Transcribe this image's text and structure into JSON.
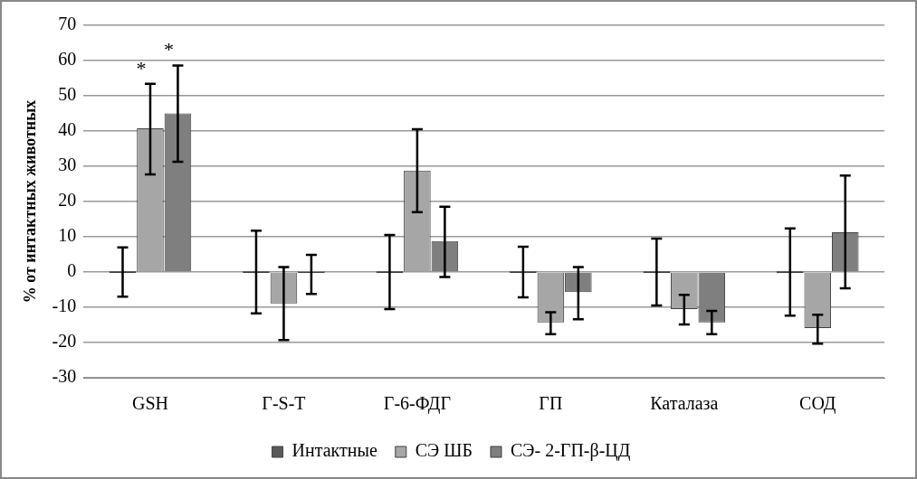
{
  "chart_data": {
    "type": "bar",
    "ylabel": "% от интактных животных",
    "categories": [
      "GSH",
      "Г-S-T",
      "Г-6-ФДГ",
      "ГП",
      "Каталаза",
      "СОД"
    ],
    "series": [
      {
        "name": "Интактные",
        "color": "#595959",
        "values": [
          0,
          0,
          0,
          0,
          0,
          0
        ],
        "errors": [
          7,
          11.7,
          10.5,
          7.2,
          9.5,
          12.4
        ]
      },
      {
        "name": "СЭ ШБ",
        "color": "#a6a6a6",
        "values": [
          40.8,
          -8.9,
          28.8,
          -14.3,
          -10.5,
          -15.9
        ],
        "errors": [
          [
            27.7,
            53.4
          ],
          [
            -19.3,
            1.4
          ],
          [
            17,
            40.5
          ],
          [
            -17.6,
            -11.4
          ],
          [
            -14.9,
            -6.5
          ],
          [
            -20.3,
            -12.1
          ]
        ]
      },
      {
        "name": "СЭ- 2-ГП-β-ЦД",
        "color": "#7f7f7f",
        "values": [
          45,
          0,
          8.8,
          -5.7,
          -14.3,
          11.3
        ],
        "errors": [
          [
            31.3,
            58.6
          ],
          [
            -6.2,
            4.9
          ],
          [
            -1.4,
            18.5
          ],
          [
            -13.4,
            1.4
          ],
          [
            -17.6,
            -11
          ],
          [
            -4.6,
            27.4
          ]
        ]
      }
    ],
    "annotations": [
      "*",
      "*"
    ],
    "ylim": [
      -30,
      70
    ],
    "yticks": [
      -30,
      -20,
      -10,
      0,
      10,
      20,
      30,
      40,
      50,
      60,
      70
    ],
    "grid": "y",
    "legend": "bottom"
  }
}
